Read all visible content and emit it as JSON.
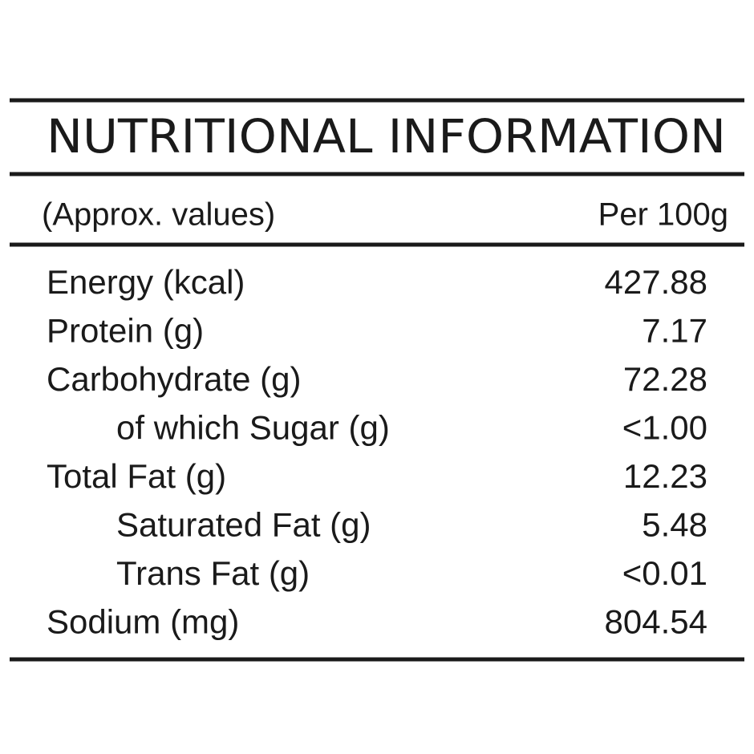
{
  "header": {
    "title": "NUTRITIONAL INFORMATION",
    "note": "(Approx. values)",
    "basis": "Per 100g"
  },
  "table": {
    "rows": [
      {
        "label": "Energy (kcal)",
        "value": "427.88"
      },
      {
        "label": "Protein (g)",
        "value": "7.17"
      },
      {
        "label": "Carbohydrate (g)",
        "value": "72.28",
        "sub": [
          {
            "label": "of which Sugar (g)",
            "value": "<1.00"
          }
        ]
      },
      {
        "label": "Total Fat (g)",
        "value": "12.23",
        "sub": [
          {
            "label": "Saturated Fat (g)",
            "value": "5.48"
          },
          {
            "label": "Trans Fat (g)",
            "value": "<0.01"
          }
        ]
      },
      {
        "label": "Sodium (mg)",
        "value": "804.54"
      }
    ]
  }
}
